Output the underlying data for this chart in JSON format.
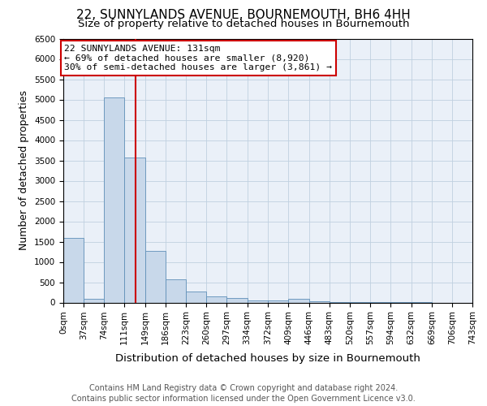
{
  "title": "22, SUNNYLANDS AVENUE, BOURNEMOUTH, BH6 4HH",
  "subtitle": "Size of property relative to detached houses in Bournemouth",
  "xlabel": "Distribution of detached houses by size in Bournemouth",
  "ylabel": "Number of detached properties",
  "footer_line1": "Contains HM Land Registry data © Crown copyright and database right 2024.",
  "footer_line2": "Contains public sector information licensed under the Open Government Licence v3.0.",
  "annotation_line1": "22 SUNNYLANDS AVENUE: 131sqm",
  "annotation_line2": "← 69% of detached houses are smaller (8,920)",
  "annotation_line3": "30% of semi-detached houses are larger (3,861) →",
  "property_size": 131,
  "bar_color": "#c8d8ea",
  "bar_edge_color": "#6090b8",
  "redline_color": "#cc0000",
  "bins": [
    0,
    37,
    74,
    111,
    149,
    186,
    223,
    260,
    297,
    334,
    372,
    409,
    446,
    483,
    520,
    557,
    594,
    632,
    669,
    706,
    743
  ],
  "counts": [
    1600,
    100,
    5050,
    3580,
    1280,
    580,
    270,
    155,
    110,
    50,
    45,
    95,
    25,
    5,
    3,
    2,
    1,
    1,
    0,
    0
  ],
  "ylim": [
    0,
    6500
  ],
  "yticks": [
    0,
    500,
    1000,
    1500,
    2000,
    2500,
    3000,
    3500,
    4000,
    4500,
    5000,
    5500,
    6000,
    6500
  ],
  "annotation_box_color": "#ffffff",
  "annotation_box_edge": "#cc0000",
  "title_fontsize": 11,
  "subtitle_fontsize": 9.5,
  "axis_label_fontsize": 9,
  "tick_fontsize": 7.5,
  "footer_fontsize": 7
}
